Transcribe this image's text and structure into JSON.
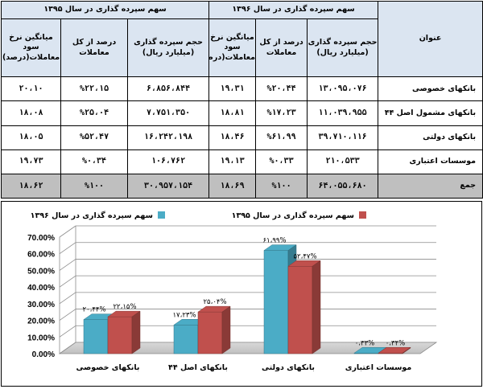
{
  "table": {
    "year_1396_header": "سهم سپرده گذاری در سال ۱۳۹۶",
    "year_1395_header": "سهم سپرده گذاری در سال ۱۳۹۵",
    "title_col": "عنوان",
    "sub_headers_1396": [
      "حجم سپرده گذاری (میلیارد ریال)",
      "درصد از کل معاملات",
      "میانگین نرخ سود معاملات(درصد)"
    ],
    "sub_headers_1395": [
      "حجم سپرده گذاری (میلیارد ریال)",
      "درصد از کل معاملات",
      "میانگین نرخ سود معاملات(درصد)"
    ],
    "rows": [
      {
        "title": "بانکهای خصوصی",
        "y1396": [
          "۱۳،۰۹۵،۰۷۶",
          "%۲۰،۴۴",
          "۱۹،۳۱"
        ],
        "y1395": [
          "۶،۸۵۶،۸۴۴",
          "%۲۲،۱۵",
          "۲۰،۱۰"
        ]
      },
      {
        "title": "بانکهای مشمول اصل ۴۴",
        "y1396": [
          "۱۱،۰۳۹،۹۵۵",
          "%۱۷،۲۳",
          "۱۸،۸۱"
        ],
        "y1395": [
          "۷،۷۵۱،۳۵۰",
          "%۲۵،۰۴",
          "۱۸،۰۸"
        ]
      },
      {
        "title": "بانکهای دولتی",
        "y1396": [
          "۳۹،۷۱۰،۱۱۶",
          "%۶۱،۹۹",
          "۱۸،۴۶"
        ],
        "y1395": [
          "۱۶،۲۴۲،۱۹۸",
          "%۵۲،۴۷",
          "۱۸،۰۵"
        ]
      },
      {
        "title": "موسسات اعتباری",
        "y1396": [
          "۲۱۰،۵۳۳",
          "%۰،۳۳",
          "۱۹،۱۳"
        ],
        "y1395": [
          "۱۰۶،۷۶۲",
          "%۰،۳۴",
          "۱۹،۷۳"
        ]
      }
    ],
    "total": {
      "title": "جمع",
      "y1396": [
        "۶۴،۰۵۵،۶۸۰",
        "%۱۰۰",
        "۱۸،۶۹"
      ],
      "y1395": [
        "۳۰،۹۵۷،۱۵۴",
        "%۱۰۰",
        "۱۸،۶۲"
      ]
    }
  },
  "chart_data": {
    "type": "bar",
    "categories": [
      "بانکهای خصوصی",
      "بانکهای اصل ۴۴",
      "بانکهای دولتی",
      "موسسات اعتباری"
    ],
    "series": [
      {
        "name": "سهم سپرده گذاری در سال ۱۳۹۶",
        "values": [
          20.44,
          17.23,
          61.99,
          0.33
        ],
        "labels": [
          "۲۰،۴۴%",
          "۱۷،۲۳%",
          "۶۱،۹۹%",
          "۰،۳۳%"
        ],
        "color": "#4bacc6"
      },
      {
        "name": "سهم سپرده گذاری در سال ۱۳۹۵",
        "values": [
          22.15,
          25.04,
          52.47,
          0.34
        ],
        "labels": [
          "۲۲،۱۵%",
          "۲۵،۰۴%",
          "۵۲،۴۷%",
          "۰،۳۴%"
        ],
        "color": "#c0504d"
      }
    ],
    "yticks": [
      "0.00%",
      "10.00%",
      "20.00%",
      "30.00%",
      "40.00%",
      "50.00%",
      "60.00%",
      "70.00%"
    ],
    "ylim": [
      0,
      70
    ],
    "grid": true,
    "legend_position": "top",
    "style": "3d"
  }
}
